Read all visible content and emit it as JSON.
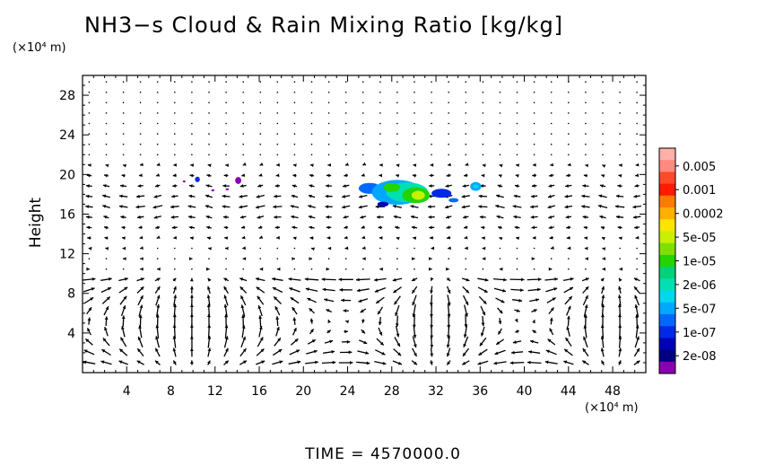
{
  "title": "NH3−s Cloud & Rain Mixing Ratio [kg/kg]",
  "unit_y": "(×10⁴ m)",
  "unit_x": "(×10⁴ m)",
  "ylabel": "Height",
  "time_label": "TIME  =  4570000.0",
  "colors": {
    "axis": "#000000",
    "arrow": "#000000",
    "background": "#ffffff"
  },
  "chart_data": {
    "type": "heatmap",
    "title": "NH3−s Cloud & Rain Mixing Ratio [kg/kg]",
    "ylabel": "Height",
    "xlabel": "",
    "x_unit": "(×10⁴ m)",
    "y_unit": "(×10⁴ m)",
    "xlim": [
      0,
      51
    ],
    "ylim": [
      0,
      30
    ],
    "x_ticks": [
      4,
      8,
      12,
      16,
      20,
      24,
      28,
      32,
      36,
      40,
      44,
      48
    ],
    "y_ticks": [
      4,
      8,
      12,
      16,
      20,
      24,
      28
    ],
    "grid": false,
    "legend_position": "right",
    "colorbar": [
      {
        "label": "",
        "color": "#ffb0a8"
      },
      {
        "label": "0.005",
        "color": "#ff8a80"
      },
      {
        "label": "",
        "color": "#ff4a2a"
      },
      {
        "label": "0.001",
        "color": "#ff1a00"
      },
      {
        "label": "",
        "color": "#ff7a00"
      },
      {
        "label": "0.0002",
        "color": "#ffb000"
      },
      {
        "label": "",
        "color": "#ffe400"
      },
      {
        "label": "5e-05",
        "color": "#c8f000"
      },
      {
        "label": "",
        "color": "#7fe000"
      },
      {
        "label": "1e-05",
        "color": "#22d400"
      },
      {
        "label": "",
        "color": "#00d27a"
      },
      {
        "label": "2e-06",
        "color": "#00e0b0"
      },
      {
        "label": "",
        "color": "#00d8ee"
      },
      {
        "label": "5e-07",
        "color": "#00a8ff"
      },
      {
        "label": "",
        "color": "#0068ff"
      },
      {
        "label": "1e-07",
        "color": "#0028e8"
      },
      {
        "label": "",
        "color": "#0000b8"
      },
      {
        "label": "2e-08",
        "color": "#000080"
      },
      {
        "label": "",
        "color": "#8a00b0"
      }
    ],
    "cloud_patches": [
      {
        "x": 26.0,
        "y": 18.6,
        "rx": 1.0,
        "ry": 0.55,
        "color": "#0068ff"
      },
      {
        "x": 28.5,
        "y": 18.2,
        "rx": 2.3,
        "ry": 1.25,
        "color": "#00a8ff"
      },
      {
        "x": 29.4,
        "y": 18.2,
        "rx": 1.9,
        "ry": 1.0,
        "color": "#00e0b0"
      },
      {
        "x": 30.2,
        "y": 17.9,
        "rx": 1.25,
        "ry": 0.8,
        "color": "#22d400"
      },
      {
        "x": 30.4,
        "y": 17.9,
        "rx": 0.6,
        "ry": 0.45,
        "color": "#c8f000"
      },
      {
        "x": 28.0,
        "y": 18.7,
        "rx": 0.75,
        "ry": 0.45,
        "color": "#22d400"
      },
      {
        "x": 32.5,
        "y": 18.1,
        "rx": 0.9,
        "ry": 0.45,
        "color": "#0028e8"
      },
      {
        "x": 33.6,
        "y": 17.4,
        "rx": 0.45,
        "ry": 0.22,
        "color": "#0068ff"
      },
      {
        "x": 35.6,
        "y": 18.8,
        "rx": 0.5,
        "ry": 0.45,
        "color": "#00a8ff"
      },
      {
        "x": 35.6,
        "y": 18.8,
        "rx": 0.25,
        "ry": 0.2,
        "color": "#00d8ee"
      },
      {
        "x": 27.2,
        "y": 17.0,
        "rx": 0.5,
        "ry": 0.25,
        "color": "#0000b8"
      },
      {
        "x": 10.4,
        "y": 19.5,
        "rx": 0.22,
        "ry": 0.28,
        "color": "#0028e8"
      },
      {
        "x": 14.1,
        "y": 19.4,
        "rx": 0.28,
        "ry": 0.35,
        "color": "#8a00b0"
      },
      {
        "x": 9.2,
        "y": 19.3,
        "rx": 0.12,
        "ry": 0.1,
        "color": "#8a00b0"
      },
      {
        "x": 11.8,
        "y": 18.4,
        "rx": 0.15,
        "ry": 0.1,
        "color": "#8a00b0"
      },
      {
        "x": 13.1,
        "y": 18.5,
        "rx": 0.15,
        "ry": 0.1,
        "color": "#8a00b0"
      }
    ]
  }
}
